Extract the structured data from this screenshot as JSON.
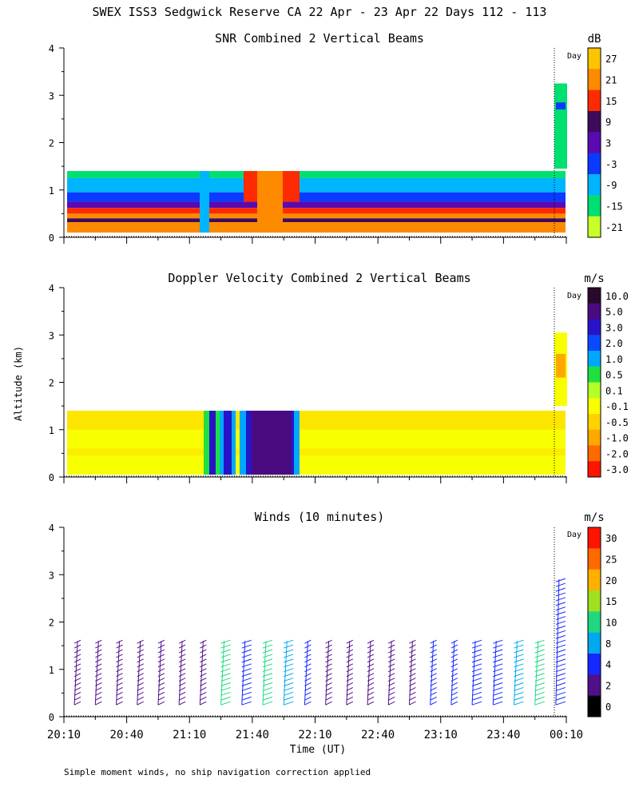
{
  "header": {
    "title": "SWEX ISS3 Sedgwick Reserve CA  22 Apr - 23 Apr 22 Days 112 - 113",
    "ylabel": "Altitude (km)",
    "xlabel": "Time (UT)",
    "footer": "Simple moment winds, no ship navigation correction applied",
    "day_marker": "Day"
  },
  "chart_data": [
    {
      "type": "heatmap",
      "title": "SNR Combined 2 Vertical Beams",
      "units": "dB",
      "yticks": [
        "0",
        "1",
        "2",
        "3",
        "4"
      ],
      "ylim": [
        0,
        4
      ],
      "xticks": [],
      "colorbar": {
        "labels": [
          "27",
          "21",
          "15",
          "9",
          "3",
          "-3",
          "-9",
          "-15",
          "-21"
        ],
        "colors": [
          "#fec400",
          "#fe8a00",
          "#fe2a00",
          "#3e0a5a",
          "#5a0ab0",
          "#0a3aff",
          "#00b4fe",
          "#00e070",
          "#c8ff28"
        ]
      },
      "layers": [
        {
          "range_km": [
            1.25,
            1.4
          ],
          "snr_db": -15
        },
        {
          "range_km": [
            0.95,
            1.25
          ],
          "snr_db": -9
        },
        {
          "range_km": [
            0.75,
            0.95
          ],
          "snr_db": -3
        },
        {
          "range_km": [
            0.62,
            0.75
          ],
          "snr_db": 3
        },
        {
          "range_km": [
            0.5,
            0.62
          ],
          "snr_db": 15
        },
        {
          "range_km": [
            0.4,
            0.5
          ],
          "snr_db": 21
        },
        {
          "range_km": [
            0.32,
            0.4
          ],
          "snr_db": 9
        },
        {
          "range_km": [
            0.1,
            0.32
          ],
          "snr_db": 21
        }
      ]
    },
    {
      "type": "heatmap",
      "title": "Doppler Velocity Combined 2 Vertical Beams",
      "units": "m/s",
      "yticks": [
        "0",
        "1",
        "2",
        "3",
        "4"
      ],
      "ylim": [
        0,
        4
      ],
      "xticks": [],
      "colorbar": {
        "labels": [
          "10.0",
          "5.0",
          "3.0",
          "2.0",
          "1.0",
          "0.5",
          "0.1",
          "-0.1",
          "-0.5",
          "-1.0",
          "-2.0",
          "-3.0"
        ],
        "colors": [
          "#2a0a2a",
          "#4a0a80",
          "#2814c8",
          "#0a4aff",
          "#00a8fe",
          "#20e040",
          "#b4ff28",
          "#f8ff00",
          "#ffd200",
          "#ffa800",
          "#ff6a00",
          "#ff1400"
        ]
      },
      "dominant_velocity_ms": -0.1,
      "downdraft_velocity_ms": 5.0
    },
    {
      "type": "scatter",
      "title": "Winds (10 minutes)",
      "units": "m/s",
      "yticks": [
        "0",
        "1",
        "2",
        "3",
        "4"
      ],
      "ylim": [
        0,
        4
      ],
      "xticks": [
        "20:10",
        "20:40",
        "21:10",
        "21:40",
        "22:10",
        "22:40",
        "23:10",
        "23:40",
        "00:10"
      ],
      "colorbar": {
        "labels": [
          "30",
          "25",
          "20",
          "15",
          "10",
          "8",
          "4",
          "2",
          "0"
        ],
        "colors": [
          "#ff1400",
          "#ff6a00",
          "#ffb000",
          "#a0e020",
          "#20d880",
          "#00a8f0",
          "#1428ff",
          "#50108a",
          "#000000"
        ]
      },
      "profile_times": [
        "20:15",
        "20:25",
        "20:35",
        "20:45",
        "20:55",
        "21:05",
        "21:15",
        "21:25",
        "21:35",
        "21:45",
        "21:55",
        "22:05",
        "22:15",
        "22:25",
        "22:35",
        "22:45",
        "22:55",
        "23:05",
        "23:15",
        "23:25",
        "23:35",
        "23:45",
        "23:55",
        "00:05"
      ],
      "profile_speeds_ms": [
        3,
        3,
        3,
        3,
        3,
        3,
        2,
        10,
        6,
        12,
        8,
        4,
        3,
        3,
        3,
        3,
        3,
        4,
        4,
        6,
        7,
        8,
        10,
        6
      ]
    }
  ]
}
